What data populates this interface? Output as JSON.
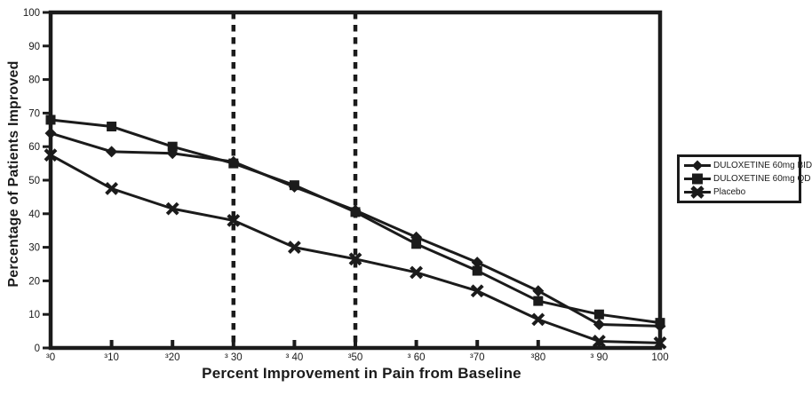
{
  "figure": {
    "background": "#ffffff",
    "ink_color": "#1b1b1b"
  },
  "chart_data": {
    "type": "line",
    "title": "",
    "xlabel": "Percent Improvement in Pain from Baseline",
    "ylabel": "Percentage of Patients Improved",
    "xlim": [
      0,
      100
    ],
    "ylim": [
      0,
      100
    ],
    "grid": false,
    "legend_position": "outside-right",
    "x": [
      0,
      10,
      20,
      30,
      40,
      50,
      60,
      70,
      80,
      90,
      100
    ],
    "x_tick_labels": [
      "³0",
      "³10",
      "³20",
      "³ 30",
      "³ 40",
      "³50",
      "³ 60",
      "³70",
      "³80",
      "³ 90",
      "100"
    ],
    "y_ticks": [
      0,
      10,
      20,
      30,
      40,
      50,
      60,
      70,
      80,
      90,
      100
    ],
    "y_tick_labels": [
      "0",
      "10",
      "20",
      "30",
      "40",
      "50",
      "60",
      "70",
      "80",
      "90",
      "100"
    ],
    "reference_lines_x": [
      30,
      50
    ],
    "series": [
      {
        "name": "DULOXETINE 60mg BID",
        "marker": "diamond",
        "values": [
          64,
          58.5,
          58,
          55.5,
          48,
          41,
          33,
          25.5,
          17,
          7,
          6.5
        ]
      },
      {
        "name": "DULOXETINE 60mg QD",
        "marker": "square",
        "values": [
          68,
          66,
          60,
          55,
          48.5,
          40.5,
          31,
          23,
          14,
          10,
          7.5
        ]
      },
      {
        "name": "Placebo",
        "marker": "x",
        "values": [
          57.5,
          47.5,
          41.5,
          38,
          30,
          26.5,
          22.5,
          17,
          8.5,
          2,
          1.5
        ]
      }
    ]
  }
}
